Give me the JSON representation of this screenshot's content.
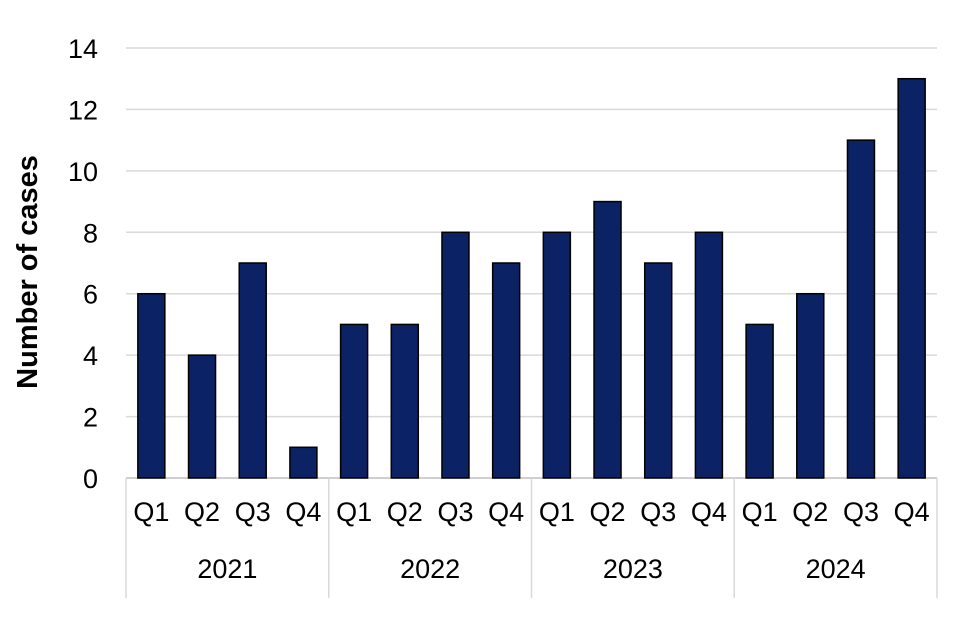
{
  "chart_data": {
    "type": "bar",
    "title": "",
    "xlabel": "",
    "ylabel": "Number of cases",
    "ylim": [
      0,
      14
    ],
    "yticks": [
      "0",
      "2",
      "4",
      "6",
      "8",
      "10",
      "12",
      "14"
    ],
    "grid": true,
    "legend": "none",
    "bar_color": "#0b2265",
    "groups": [
      {
        "label": "2021",
        "categories": [
          "Q1",
          "Q2",
          "Q3",
          "Q4"
        ],
        "values": [
          6,
          4,
          7,
          1
        ]
      },
      {
        "label": "2022",
        "categories": [
          "Q1",
          "Q2",
          "Q3",
          "Q4"
        ],
        "values": [
          5,
          5,
          8,
          7
        ]
      },
      {
        "label": "2023",
        "categories": [
          "Q1",
          "Q2",
          "Q3",
          "Q4"
        ],
        "values": [
          8,
          9,
          7,
          8
        ]
      },
      {
        "label": "2024",
        "categories": [
          "Q1",
          "Q2",
          "Q3",
          "Q4"
        ],
        "values": [
          5,
          6,
          11,
          13
        ]
      }
    ]
  }
}
